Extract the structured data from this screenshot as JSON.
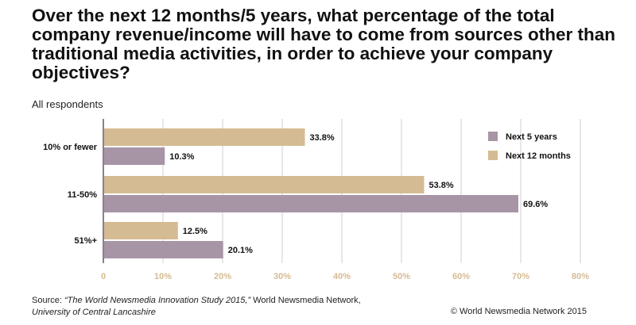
{
  "chart_data": {
    "type": "bar",
    "orientation": "horizontal",
    "title": "Over the next 12 months/5 years, what percentage of the total company revenue/income will have to come from sources other than traditional media activities, in order to achieve your company objectives?",
    "subtitle": "All respondents",
    "categories": [
      "10% or fewer",
      "11-50%",
      "51%+"
    ],
    "series": [
      {
        "name": "Next 12 months",
        "values": [
          33.8,
          53.8,
          12.5
        ],
        "labels": [
          "33.8%",
          "53.8%",
          "12.5%"
        ],
        "color": "#d5bb93"
      },
      {
        "name": "Next 5 years",
        "values": [
          10.3,
          69.6,
          20.1
        ],
        "labels": [
          "10.3%",
          "69.6%",
          "20.1%"
        ],
        "color": "#a795a6"
      }
    ],
    "legend": [
      {
        "name": "Next 5 years",
        "color": "#a795a6"
      },
      {
        "name": "Next 12 months",
        "color": "#d5bb93"
      }
    ],
    "legend_position": "top-right",
    "xlim": [
      0,
      80
    ],
    "x_ticks": [
      0,
      10,
      20,
      30,
      40,
      50,
      60,
      70,
      80
    ],
    "x_tick_labels": [
      "0",
      "10%",
      "20%",
      "30%",
      "40%",
      "50%",
      "60%",
      "70%",
      "80%"
    ],
    "tick_color": "#d5bb93",
    "grid_color": "#cfcfcf",
    "axis_color": "#8c7f8e",
    "grid": true
  },
  "footer": {
    "source_prefix": "Source: ",
    "source_title": "“The World Newsmedia Innovation Study 2015,”",
    "source_rest": " World Newsmedia Network,",
    "source_line2": "University of Central Lancashire",
    "copyright": "© World Newsmedia Network 2015"
  }
}
